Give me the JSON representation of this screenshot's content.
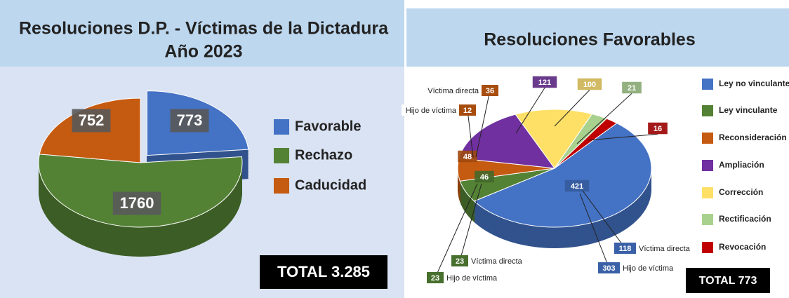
{
  "chart_data": [
    {
      "type": "pie",
      "title": "Resoluciones D.P. - Víctimas de la Dictadura",
      "subtitle": "Año 2023",
      "categories": [
        "Favorable",
        "Rechazo",
        "Caducidad"
      ],
      "values": [
        773,
        1760,
        752
      ],
      "colors": [
        "#4472c4",
        "#548235",
        "#c55a11"
      ],
      "annotation": "TOTAL 3.285"
    },
    {
      "type": "pie",
      "title": "Resoluciones Favorables",
      "categories": [
        "Ley no vinculante",
        "Ley vinculante",
        "Reconsideración",
        "Ampliación",
        "Corrección",
        "Rectificación",
        "Revocación"
      ],
      "values": [
        421,
        46,
        48,
        121,
        100,
        21,
        16
      ],
      "colors": [
        "#4472c4",
        "#548235",
        "#c55a11",
        "#7030a0",
        "#ffe066",
        "#a9d18e",
        "#c00000"
      ],
      "details": [
        [
          {
            "name": "Víctima directa",
            "value": 118
          },
          {
            "name": "Hijo de víctima",
            "value": 303
          }
        ],
        [
          {
            "name": "Víctima directa",
            "value": 23
          },
          {
            "name": "Hijo de víctima",
            "value": 23
          }
        ],
        [
          {
            "name": "Víctima directa",
            "value": 36
          },
          {
            "name": "Hijo de víctima",
            "value": 12
          }
        ],
        null,
        null,
        null,
        null
      ],
      "annotation": "TOTAL 773"
    }
  ]
}
